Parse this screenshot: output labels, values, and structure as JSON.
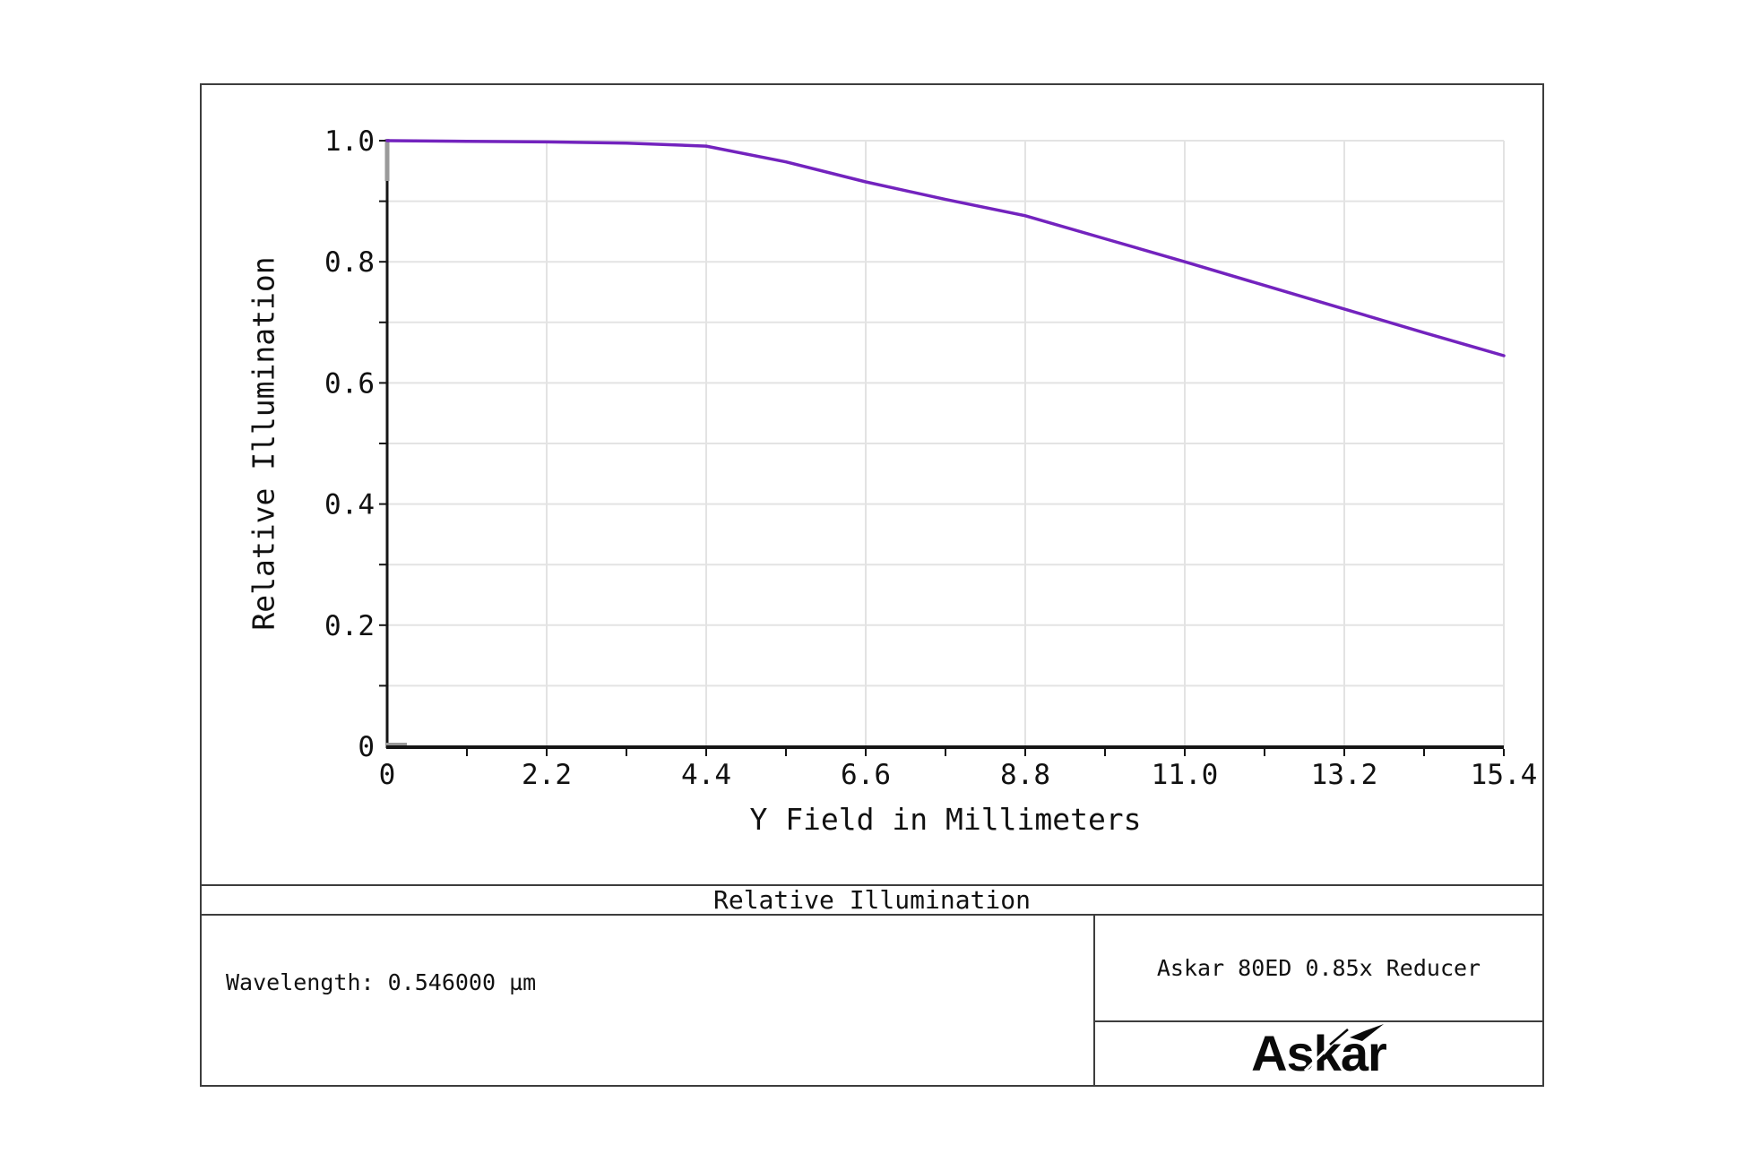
{
  "chart_data": {
    "type": "line",
    "title": "Relative Illumination",
    "xlabel": "Y Field in Millimeters",
    "ylabel": "Relative Illumination",
    "xlim": [
      0,
      15.4
    ],
    "ylim": [
      0,
      1.0
    ],
    "x_ticks": [
      0,
      2.2,
      4.4,
      6.6,
      8.8,
      11.0,
      13.2,
      15.4
    ],
    "x_tick_labels": [
      "0",
      "2.2",
      "4.4",
      "6.6",
      "8.8",
      "11.0",
      "13.2",
      "15.4"
    ],
    "y_ticks": [
      0,
      0.2,
      0.4,
      0.6,
      0.8,
      1.0
    ],
    "y_tick_labels": [
      "0",
      "0.2",
      "0.4",
      "0.6",
      "0.8",
      "1.0"
    ],
    "grid": "on",
    "grid_x_interval": 2.2,
    "grid_y_interval": 0.1,
    "minor_tick_x_interval": 1.1,
    "minor_tick_y_interval": 0.1,
    "legend": "none",
    "series": [
      {
        "name": "Relative Illumination at 0.546000 µm",
        "color": "#7323BE",
        "x": [
          0,
          1.1,
          2.2,
          3.3,
          4.4,
          5.5,
          6.6,
          7.7,
          8.8,
          9.9,
          11.0,
          12.1,
          13.2,
          14.3,
          15.4
        ],
        "y": [
          1.0,
          0.999,
          0.998,
          0.996,
          0.991,
          0.965,
          0.932,
          0.903,
          0.876,
          0.838,
          0.8,
          0.761,
          0.722,
          0.683,
          0.645
        ]
      }
    ]
  },
  "footer": {
    "section_title": "Relative Illumination",
    "wavelength": "Wavelength: 0.546000 µm",
    "product": "Askar 80ED 0.85x Reducer",
    "brand": "Askar"
  },
  "colors": {
    "curve": "#7323BE",
    "grid": "#e3e3e3",
    "axis": "#151515",
    "axis_accent": "#9a9a9a",
    "frame": "#3d3d3d",
    "text": "#111111",
    "background": "#ffffff"
  }
}
